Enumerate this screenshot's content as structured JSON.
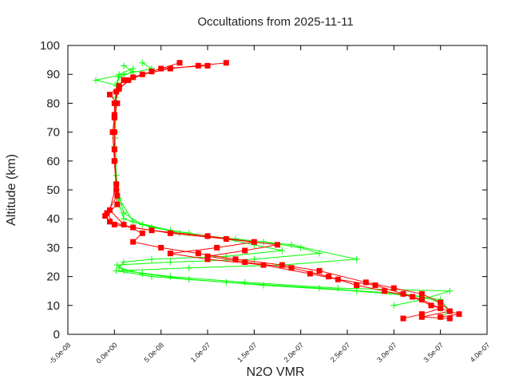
{
  "chart_data": {
    "type": "line",
    "title": "Occultations from 2025-11-11",
    "xlabel": "N2O VMR",
    "ylabel": "Altitude (km)",
    "xlim": [
      -5e-08,
      4e-07
    ],
    "ylim": [
      0,
      100
    ],
    "xticks": [
      "-5.0e-08",
      "0.0e+00",
      "5.0e-08",
      "1.0e-07",
      "1.5e-07",
      "2.0e-07",
      "2.5e-07",
      "3.0e-07",
      "3.5e-07",
      "4.0e-07"
    ],
    "xtick_values": [
      -5e-08,
      0,
      5e-08,
      1e-07,
      1.5e-07,
      2e-07,
      2.5e-07,
      3e-07,
      3.5e-07,
      4e-07
    ],
    "yticks": [
      "0",
      "10",
      "20",
      "30",
      "40",
      "50",
      "60",
      "70",
      "80",
      "90",
      "100"
    ],
    "grid": false,
    "colors": {
      "green": "#00ff00",
      "red": "#ff0000"
    },
    "series": [
      {
        "marker": "plus",
        "color": "#00ff00",
        "points": [
          [
            3e-08,
            94
          ],
          [
            4e-08,
            92
          ],
          [
            1e-08,
            90
          ],
          [
            -2e-08,
            88
          ],
          [
            5e-09,
            86
          ],
          [
            3e-09,
            84
          ],
          [
            2e-09,
            80
          ],
          [
            1e-09,
            70
          ],
          [
            1e-09,
            60
          ],
          [
            3e-09,
            50
          ],
          [
            5e-09,
            45
          ],
          [
            1e-08,
            40
          ],
          [
            4e-08,
            37
          ],
          [
            8e-08,
            35
          ],
          [
            1.2e-07,
            33
          ],
          [
            1.5e-07,
            31
          ],
          [
            1.8e-07,
            29
          ],
          [
            1.2e-07,
            27
          ],
          [
            4e-08,
            26
          ],
          [
            1e-08,
            25
          ],
          [
            5e-09,
            23
          ],
          [
            3e-08,
            21
          ],
          [
            8e-08,
            19
          ],
          [
            1.6e-07,
            17
          ],
          [
            2.6e-07,
            15
          ],
          [
            3.3e-07,
            13
          ],
          [
            3.5e-07,
            11
          ],
          [
            3.5e-07,
            9
          ]
        ]
      },
      {
        "marker": "plus",
        "color": "#00ff00",
        "points": [
          [
            1e-08,
            93
          ],
          [
            2e-08,
            91
          ],
          [
            5e-09,
            89
          ],
          [
            2e-09,
            86
          ],
          [
            1e-09,
            82
          ],
          [
            0,
            75
          ],
          [
            0,
            65
          ],
          [
            2e-09,
            55
          ],
          [
            5e-09,
            47
          ],
          [
            2e-08,
            39
          ],
          [
            6e-08,
            36
          ],
          [
            1e-07,
            34
          ],
          [
            1.6e-07,
            32
          ],
          [
            2e-07,
            30
          ],
          [
            2.2e-07,
            28
          ],
          [
            1.5e-07,
            26
          ],
          [
            6e-08,
            25
          ],
          [
            3e-09,
            24
          ],
          [
            1e-08,
            22
          ],
          [
            6e-08,
            20
          ],
          [
            1.4e-07,
            18
          ],
          [
            2.4e-07,
            16
          ],
          [
            3.6e-07,
            15
          ],
          [
            3.3e-07,
            12
          ],
          [
            3e-07,
            10
          ]
        ]
      },
      {
        "marker": "plus",
        "color": "#00ff00",
        "points": [
          [
            2e-08,
            92
          ],
          [
            5e-09,
            90
          ],
          [
            3e-09,
            87
          ],
          [
            1e-09,
            80
          ],
          [
            1e-09,
            68
          ],
          [
            2e-09,
            52
          ],
          [
            1e-08,
            42
          ],
          [
            3e-08,
            38
          ],
          [
            7e-08,
            35
          ],
          [
            1.3e-07,
            33
          ],
          [
            1.9e-07,
            31
          ],
          [
            2.6e-07,
            26
          ],
          [
            1.8e-07,
            24
          ],
          [
            8e-08,
            23
          ],
          [
            2e-09,
            22
          ],
          [
            4e-08,
            20
          ],
          [
            1.2e-07,
            18
          ],
          [
            2.2e-07,
            16
          ],
          [
            3.1e-07,
            14
          ],
          [
            3.5e-07,
            12
          ],
          [
            3.6e-07,
            8
          ],
          [
            3.5e-07,
            6
          ]
        ]
      },
      {
        "marker": "square",
        "color": "#ff0000",
        "points": [
          [
            1.2e-07,
            94
          ],
          [
            9e-08,
            93
          ],
          [
            6e-08,
            92
          ],
          [
            3e-08,
            90
          ],
          [
            1e-08,
            88
          ],
          [
            5e-09,
            86
          ],
          [
            -5e-09,
            83
          ],
          [
            3e-09,
            80
          ],
          [
            0,
            75
          ],
          [
            -2e-09,
            70
          ],
          [
            0,
            60
          ],
          [
            2e-09,
            50
          ],
          [
            3e-09,
            45
          ],
          [
            -1e-08,
            41
          ],
          [
            -5e-09,
            39
          ],
          [
            2e-08,
            37
          ],
          [
            6e-08,
            35
          ],
          [
            1.2e-07,
            33
          ],
          [
            1.75e-07,
            31
          ],
          [
            1.4e-07,
            29
          ],
          [
            1e-07,
            27
          ],
          [
            1.4e-07,
            25
          ],
          [
            1.9e-07,
            23
          ],
          [
            2.3e-07,
            20
          ],
          [
            2.6e-07,
            17
          ],
          [
            2.9e-07,
            15
          ],
          [
            3.2e-07,
            13
          ],
          [
            3.4e-07,
            10
          ],
          [
            3.7e-07,
            7
          ],
          [
            3.5e-07,
            6
          ]
        ]
      },
      {
        "marker": "square",
        "color": "#ff0000",
        "points": [
          [
            1e-07,
            93
          ],
          [
            5e-08,
            92
          ],
          [
            2e-08,
            89
          ],
          [
            5e-09,
            85
          ],
          [
            0,
            80
          ],
          [
            0,
            70
          ],
          [
            0,
            60
          ],
          [
            3e-09,
            48
          ],
          [
            -8e-09,
            42
          ],
          [
            0,
            38
          ],
          [
            4e-08,
            36
          ],
          [
            1e-07,
            34
          ],
          [
            1.5e-07,
            32
          ],
          [
            1.1e-07,
            30
          ],
          [
            6e-08,
            28
          ],
          [
            1e-07,
            26
          ],
          [
            1.6e-07,
            24
          ],
          [
            2.1e-07,
            21
          ],
          [
            2.4e-07,
            19
          ],
          [
            2.8e-07,
            17
          ],
          [
            3.1e-07,
            14
          ],
          [
            3.3e-07,
            12
          ],
          [
            3.5e-07,
            9
          ],
          [
            3.3e-07,
            7
          ],
          [
            3.1e-07,
            5.5
          ]
        ]
      },
      {
        "marker": "square",
        "color": "#ff0000",
        "points": [
          [
            7e-08,
            94
          ],
          [
            4e-08,
            91
          ],
          [
            1.5e-08,
            88
          ],
          [
            2e-09,
            84
          ],
          [
            0,
            76
          ],
          [
            0,
            64
          ],
          [
            2e-09,
            52
          ],
          [
            -5e-09,
            43
          ],
          [
            1e-08,
            38
          ],
          [
            3e-08,
            35
          ],
          [
            2e-08,
            32
          ],
          [
            5e-08,
            30
          ],
          [
            9e-08,
            28
          ],
          [
            1.3e-07,
            26
          ],
          [
            1.8e-07,
            24
          ],
          [
            2.2e-07,
            22
          ],
          [
            2.7e-07,
            18
          ],
          [
            3e-07,
            16
          ],
          [
            3.3e-07,
            14
          ],
          [
            3.5e-07,
            11
          ],
          [
            3.6e-07,
            8
          ],
          [
            3.3e-07,
            6
          ],
          [
            3.6e-07,
            5.5
          ]
        ]
      }
    ]
  }
}
